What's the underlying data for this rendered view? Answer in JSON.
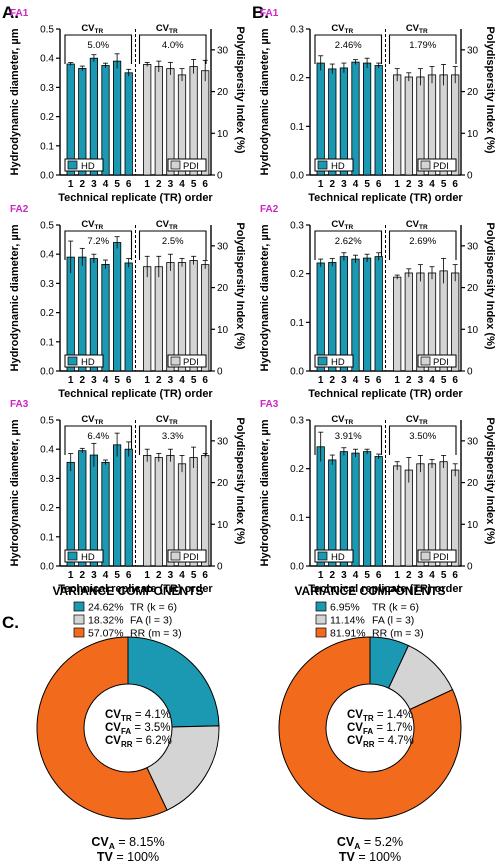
{
  "colors": {
    "hd": "#1b98b2",
    "pdi": "#d4d4d4",
    "fa_label": "#cc27c4",
    "pie_tr": "#1b98b2",
    "pie_fa": "#d4d4d4",
    "pie_rr": "#f26b1d"
  },
  "panels": [
    {
      "letter": "A.",
      "charts": [
        {
          "fa": "FA1",
          "hd_pct": "5.0%",
          "pdi_pct": "4.0%"
        },
        {
          "fa": "FA2",
          "hd_pct": "7.2%",
          "pdi_pct": "2.5%"
        },
        {
          "fa": "FA3",
          "hd_pct": "6.4%",
          "pdi_pct": "3.3%"
        }
      ]
    },
    {
      "letter": "B.",
      "charts": [
        {
          "fa": "FA1",
          "hd_pct": "2.46%",
          "pdi_pct": "1.79%"
        },
        {
          "fa": "FA2",
          "hd_pct": "2.62%",
          "pdi_pct": "2.69%"
        },
        {
          "fa": "FA3",
          "hd_pct": "3.91%",
          "pdi_pct": "3.50%"
        }
      ]
    }
  ],
  "labels": {
    "ylabel_left": "Hydrodynamic diameter, µm",
    "ylabel_right": "Polydispersity Index (%)",
    "xlabel": "Technical replicate (TR) order",
    "cv_main": "CV",
    "cv_sub": "TR",
    "legend_hd": "HD",
    "legend_pdi": "PDI",
    "left_ticks": [
      "0.0",
      "0.1",
      "0.2",
      "0.3",
      "0.4",
      "0.5"
    ],
    "right_ticks": [
      "0",
      "10",
      "20",
      "30"
    ],
    "x_ticks": [
      "1",
      "2",
      "3",
      "4",
      "5",
      "6"
    ]
  },
  "section_c": {
    "letter": "C.",
    "title": "VARIANCE COMPONENTS",
    "cv_main": "CV",
    "cv_a_sub": "A",
    "tv_label": "TV",
    "pies": [
      {
        "legend": [
          {
            "pct": "24.62%",
            "text": "TR (k = 6)"
          },
          {
            "pct": "18.32%",
            "text": "FA (l = 3)"
          },
          {
            "pct": "57.07%",
            "text": "RR (m = 3)"
          }
        ],
        "center": [
          {
            "sub": "TR",
            "val": " = 4.1%"
          },
          {
            "sub": "FA",
            "val": " = 3.5%"
          },
          {
            "sub": "RR",
            "val": " = 6.2%"
          }
        ],
        "cv_a": " = 8.15%",
        "tv": " = 100%"
      },
      {
        "legend": [
          {
            "pct": "6.95%",
            "text": "TR (k = 6)"
          },
          {
            "pct": "11.14%",
            "text": "FA (l = 3)"
          },
          {
            "pct": "81.91%",
            "text": "RR (m = 3)"
          }
        ],
        "center": [
          {
            "sub": "TR",
            "val": " = 1.4%"
          },
          {
            "sub": "FA",
            "val": " = 1.7%"
          },
          {
            "sub": "RR",
            "val": " = 4.7%"
          }
        ],
        "cv_a": " = 5.2%",
        "tv": " = 100%"
      }
    ]
  },
  "chart_data": [
    {
      "type": "bar",
      "panel": "A",
      "title": "FA1",
      "categories": [
        "1",
        "2",
        "3",
        "4",
        "5",
        "6"
      ],
      "ylim": [
        0,
        0.5
      ],
      "y2lim": [
        0,
        35
      ],
      "xlabel": "Technical replicate (TR) order",
      "ylabel": "Hydrodynamic diameter, µm",
      "y2label": "Polydispersity Index (%)",
      "series": [
        {
          "name": "HD",
          "axis": "left",
          "values": [
            0.38,
            0.365,
            0.4,
            0.375,
            0.39,
            0.35
          ],
          "errors": [
            0.005,
            0.008,
            0.012,
            0.008,
            0.025,
            0.012
          ]
        },
        {
          "name": "PDI",
          "axis": "right",
          "values": [
            26.5,
            26,
            25.5,
            24,
            26,
            25
          ],
          "errors": [
            0.5,
            1.3,
            1.5,
            1.5,
            1.7,
            2.5
          ]
        }
      ]
    },
    {
      "type": "bar",
      "panel": "A",
      "title": "FA2",
      "categories": [
        "1",
        "2",
        "3",
        "4",
        "5",
        "6"
      ],
      "ylim": [
        0,
        0.5
      ],
      "y2lim": [
        0,
        35
      ],
      "xlabel": "Technical replicate (TR) order",
      "ylabel": "Hydrodynamic diameter, µm",
      "y2label": "Polydispersity Index (%)",
      "series": [
        {
          "name": "HD",
          "axis": "left",
          "values": [
            0.39,
            0.39,
            0.385,
            0.365,
            0.44,
            0.37
          ],
          "errors": [
            0.055,
            0.03,
            0.015,
            0.015,
            0.02,
            0.015
          ]
        },
        {
          "name": "PDI",
          "axis": "right",
          "values": [
            25,
            25,
            26,
            26,
            26.5,
            25.5
          ],
          "errors": [
            2.5,
            2.5,
            2,
            1,
            1,
            1
          ]
        }
      ]
    },
    {
      "type": "bar",
      "panel": "A",
      "title": "FA3",
      "categories": [
        "1",
        "2",
        "3",
        "4",
        "5",
        "6"
      ],
      "ylim": [
        0,
        0.5
      ],
      "y2lim": [
        0,
        35
      ],
      "xlabel": "Technical replicate (TR) order",
      "ylabel": "Hydrodynamic diameter, µm",
      "y2label": "Polydispersity Index (%)",
      "series": [
        {
          "name": "HD",
          "axis": "left",
          "values": [
            0.355,
            0.395,
            0.38,
            0.355,
            0.415,
            0.4
          ],
          "errors": [
            0.03,
            0.008,
            0.04,
            0.008,
            0.04,
            0.025
          ]
        },
        {
          "name": "PDI",
          "axis": "right",
          "values": [
            26.5,
            26,
            26.5,
            24.5,
            26,
            26.5
          ],
          "errors": [
            1.5,
            1,
            1.5,
            2,
            2.5,
            0.5
          ]
        }
      ]
    },
    {
      "type": "bar",
      "panel": "B",
      "title": "FA1",
      "categories": [
        "1",
        "2",
        "3",
        "4",
        "5",
        "6"
      ],
      "ylim": [
        0,
        0.3
      ],
      "y2lim": [
        0,
        35
      ],
      "xlabel": "Technical replicate (TR) order",
      "ylabel": "Hydrodynamic diameter, µm",
      "y2label": "Polydispersity Index (%)",
      "series": [
        {
          "name": "HD",
          "axis": "left",
          "values": [
            0.23,
            0.218,
            0.22,
            0.232,
            0.23,
            0.225
          ],
          "errors": [
            0.015,
            0.01,
            0.01,
            0.005,
            0.01,
            0.005
          ]
        },
        {
          "name": "PDI",
          "axis": "right",
          "values": [
            24,
            23.5,
            23.5,
            24,
            24,
            24
          ],
          "errors": [
            1.5,
            1,
            2,
            2,
            2.5,
            2
          ]
        }
      ]
    },
    {
      "type": "bar",
      "panel": "B",
      "title": "FA2",
      "categories": [
        "1",
        "2",
        "3",
        "4",
        "5",
        "6"
      ],
      "ylim": [
        0,
        0.3
      ],
      "y2lim": [
        0,
        35
      ],
      "xlabel": "Technical replicate (TR) order",
      "ylabel": "Hydrodynamic diameter, µm",
      "y2label": "Polydispersity Index (%)",
      "series": [
        {
          "name": "HD",
          "axis": "left",
          "values": [
            0.222,
            0.223,
            0.235,
            0.23,
            0.232,
            0.235
          ],
          "errors": [
            0.008,
            0.008,
            0.008,
            0.008,
            0.008,
            0.008
          ]
        },
        {
          "name": "PDI",
          "axis": "right",
          "values": [
            22.5,
            23.5,
            23.5,
            23.5,
            24,
            23.5
          ],
          "errors": [
            0.5,
            1,
            2,
            1.5,
            3,
            2
          ]
        }
      ]
    },
    {
      "type": "bar",
      "panel": "B",
      "title": "FA3",
      "categories": [
        "1",
        "2",
        "3",
        "4",
        "5",
        "6"
      ],
      "ylim": [
        0,
        0.3
      ],
      "y2lim": [
        0,
        35
      ],
      "xlabel": "Technical replicate (TR) order",
      "ylabel": "Hydrodynamic diameter, µm",
      "y2label": "Polydispersity Index (%)",
      "series": [
        {
          "name": "HD",
          "axis": "left",
          "values": [
            0.245,
            0.218,
            0.235,
            0.232,
            0.235,
            0.225
          ],
          "errors": [
            0.03,
            0.01,
            0.008,
            0.008,
            0.005,
            0.005
          ]
        },
        {
          "name": "PDI",
          "axis": "right",
          "values": [
            24,
            23,
            24.5,
            24.5,
            25,
            23
          ],
          "errors": [
            1,
            3,
            2,
            1,
            1.5,
            1.5
          ]
        }
      ]
    },
    {
      "type": "pie",
      "panel": "C-left",
      "title": "VARIANCE COMPONENTS",
      "categories": [
        "TR (k = 6)",
        "FA (l = 3)",
        "RR (m = 3)"
      ],
      "values": [
        24.62,
        18.32,
        57.07
      ]
    },
    {
      "type": "pie",
      "panel": "C-right",
      "title": "VARIANCE COMPONENTS",
      "categories": [
        "TR (k = 6)",
        "FA (l = 3)",
        "RR (m = 3)"
      ],
      "values": [
        6.95,
        11.14,
        81.91
      ]
    }
  ]
}
